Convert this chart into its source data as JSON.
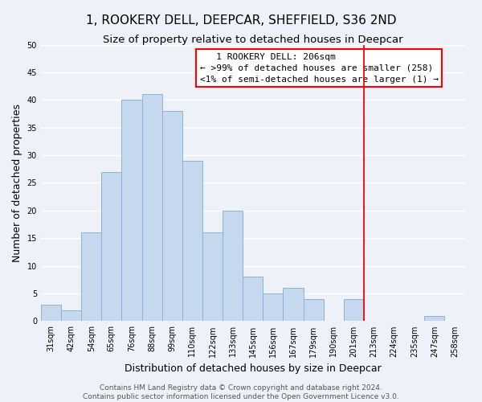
{
  "title": "1, ROOKERY DELL, DEEPCAR, SHEFFIELD, S36 2ND",
  "subtitle": "Size of property relative to detached houses in Deepcar",
  "xlabel": "Distribution of detached houses by size in Deepcar",
  "ylabel": "Number of detached properties",
  "bar_labels": [
    "31sqm",
    "42sqm",
    "54sqm",
    "65sqm",
    "76sqm",
    "88sqm",
    "99sqm",
    "110sqm",
    "122sqm",
    "133sqm",
    "145sqm",
    "156sqm",
    "167sqm",
    "179sqm",
    "190sqm",
    "201sqm",
    "213sqm",
    "224sqm",
    "235sqm",
    "247sqm",
    "258sqm"
  ],
  "bar_values": [
    3,
    2,
    16,
    27,
    40,
    41,
    38,
    29,
    16,
    20,
    8,
    5,
    6,
    4,
    0,
    4,
    0,
    0,
    0,
    1,
    0
  ],
  "bar_color": "#c5d8ed",
  "bar_edge_color": "#8ab4d4",
  "ylim": [
    0,
    50
  ],
  "yticks": [
    0,
    5,
    10,
    15,
    20,
    25,
    30,
    35,
    40,
    45,
    50
  ],
  "property_line_label": "   1 ROOKERY DELL: 206sqm",
  "legend_line1": "← >99% of detached houses are smaller (258)",
  "legend_line2": "<1% of semi-detached houses are larger (1) →",
  "footer_line1": "Contains HM Land Registry data © Crown copyright and database right 2024.",
  "footer_line2": "Contains public sector information licensed under the Open Government Licence v3.0.",
  "background_color": "#eef2f8",
  "grid_color": "#ffffff",
  "title_fontsize": 11,
  "subtitle_fontsize": 9.5,
  "label_fontsize": 9,
  "tick_fontsize": 7,
  "footer_fontsize": 6.5,
  "legend_fontsize": 8
}
